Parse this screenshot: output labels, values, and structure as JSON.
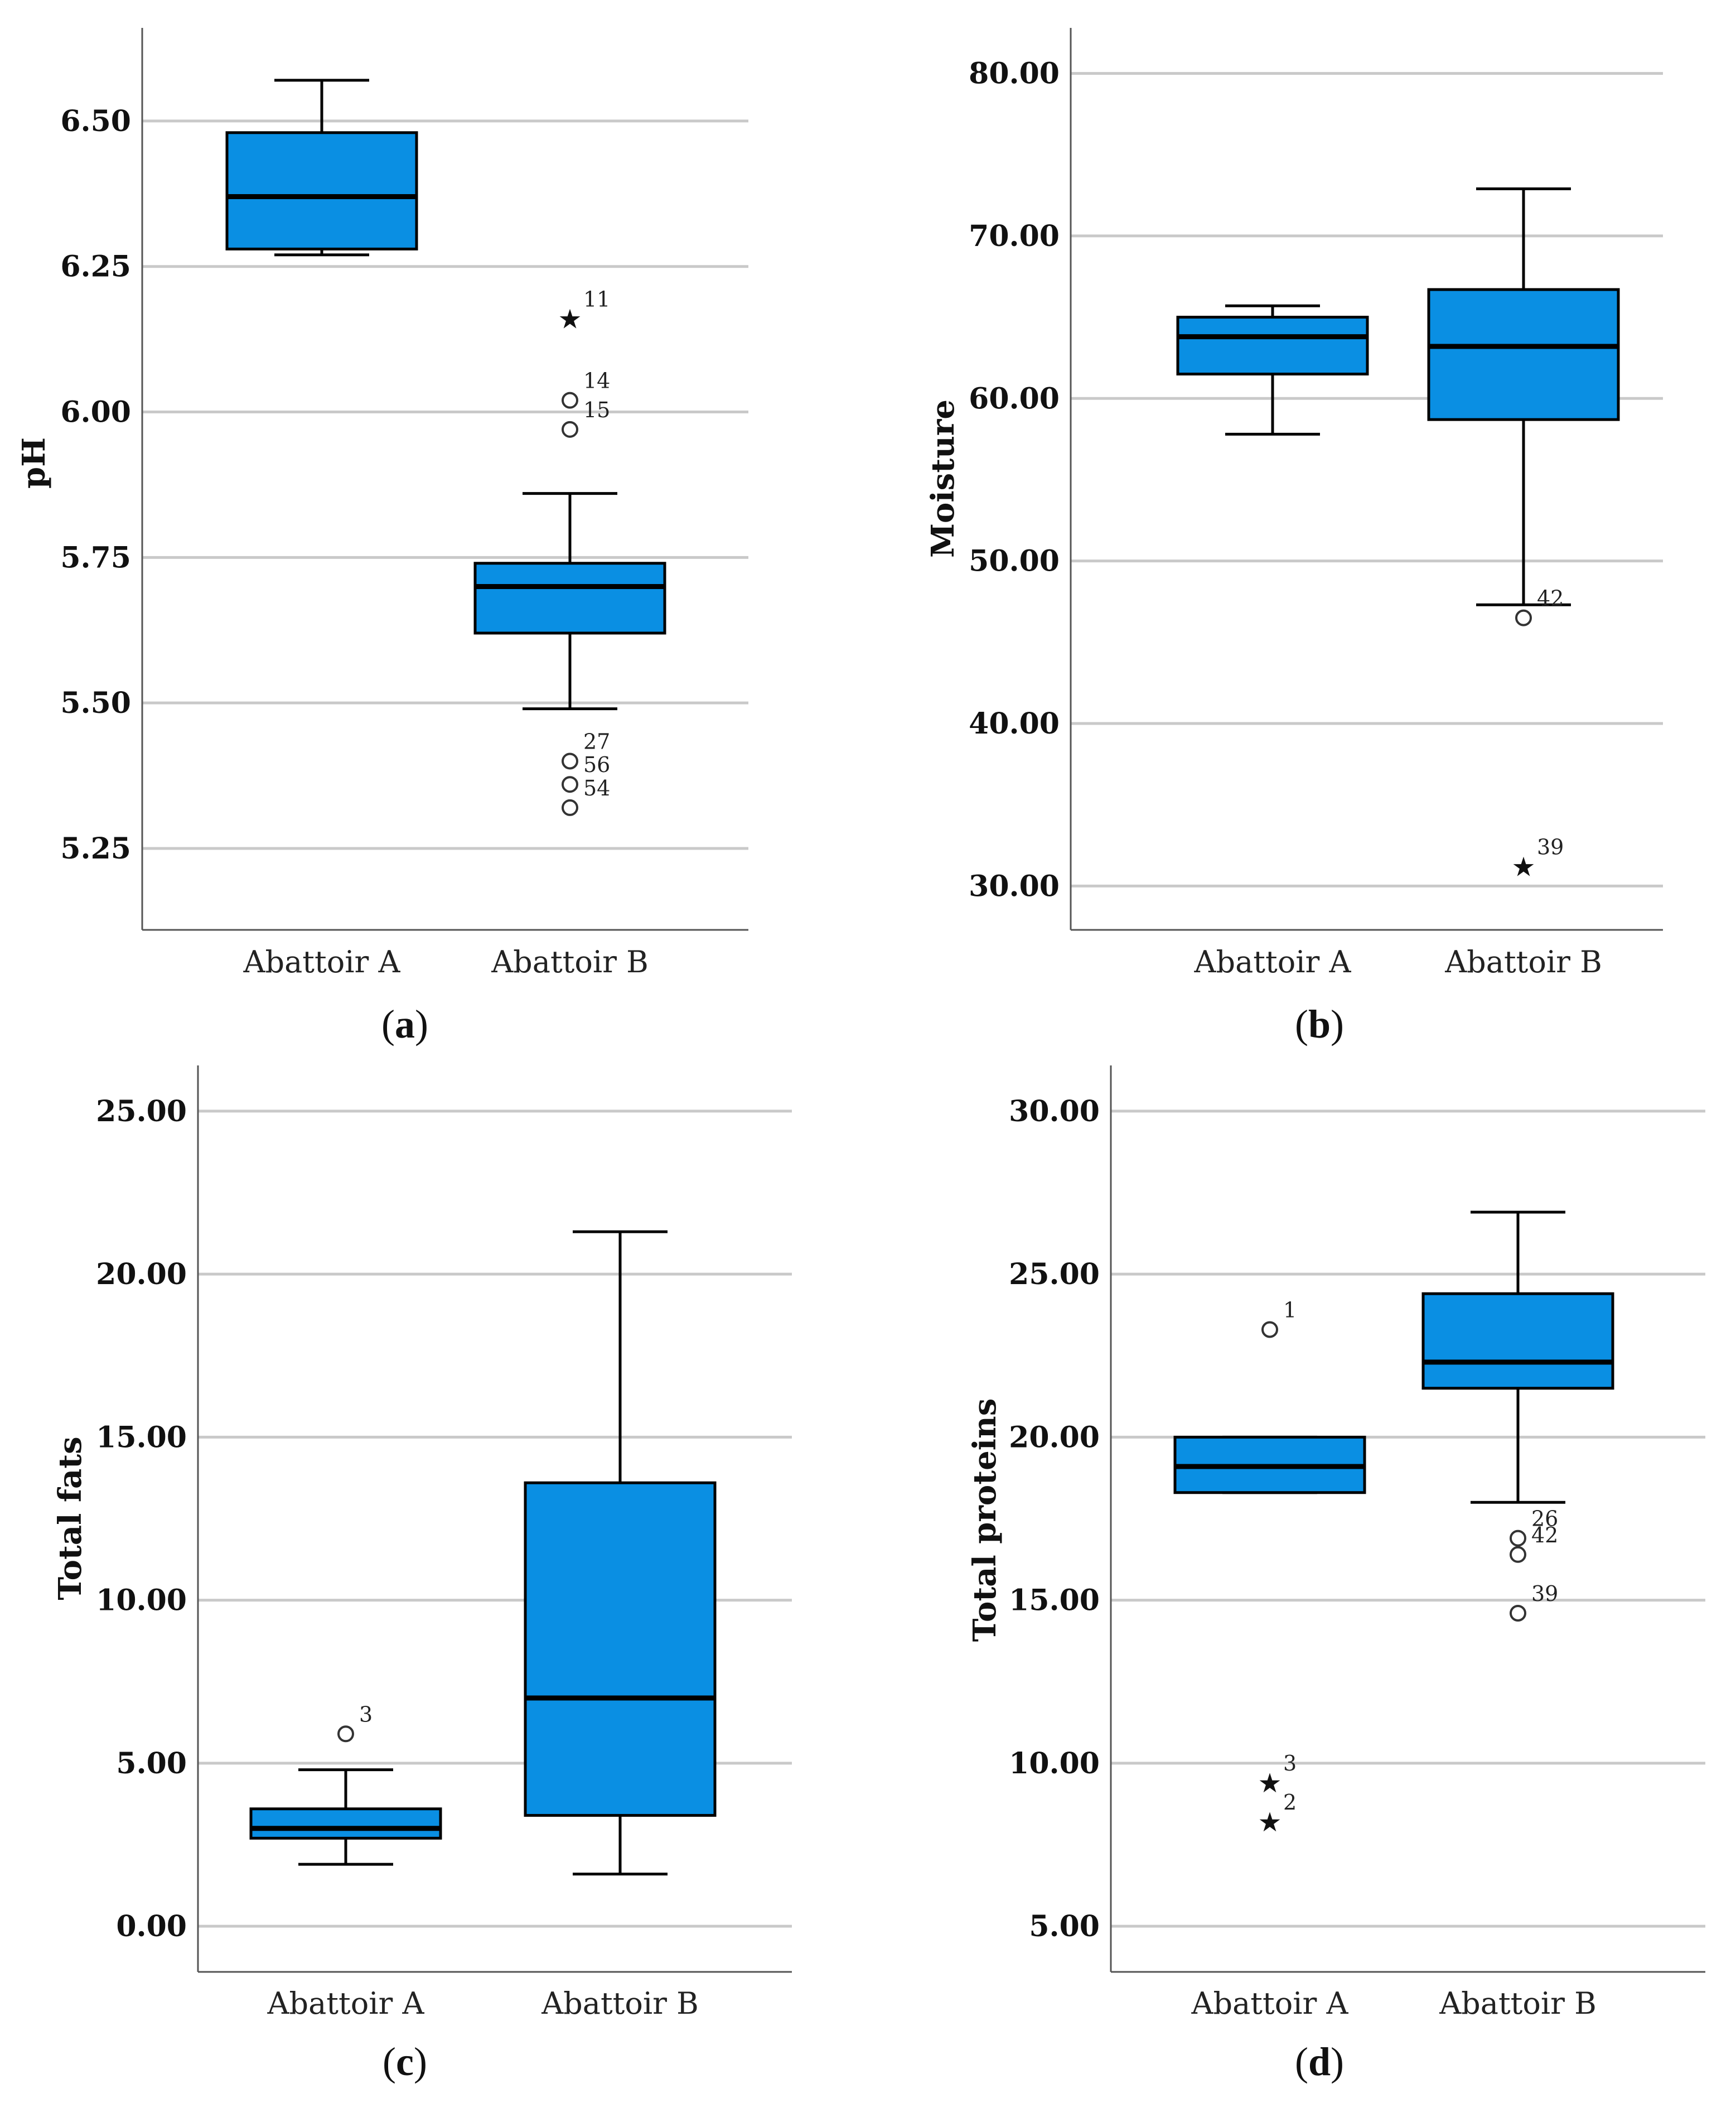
{
  "chart_data": [
    {
      "type": "boxplot",
      "panel_label": "a",
      "ylabel": "pH",
      "yticks": [
        "5.25",
        "5.50",
        "5.75",
        "6.00",
        "6.25",
        "6.50"
      ],
      "ylim": [
        5.11,
        6.66
      ],
      "categories": [
        "Abattoir A",
        "Abattoir B"
      ],
      "boxes": [
        {
          "category": "Abattoir A",
          "min": 6.27,
          "q1": 6.28,
          "median": 6.37,
          "q3": 6.48,
          "max": 6.57,
          "outliers": []
        },
        {
          "category": "Abattoir B",
          "min": 5.49,
          "q1": 5.62,
          "median": 5.7,
          "q3": 5.74,
          "max": 5.86,
          "outliers": [
            {
              "value": 6.16,
              "label": "11",
              "kind": "extreme"
            },
            {
              "value": 6.02,
              "label": "14",
              "kind": "outlier"
            },
            {
              "value": 5.97,
              "label": "15",
              "kind": "outlier"
            },
            {
              "value": 5.4,
              "label": "27",
              "kind": "outlier"
            },
            {
              "value": 5.36,
              "label": "56",
              "kind": "outlier"
            },
            {
              "value": 5.32,
              "label": "54",
              "kind": "outlier"
            }
          ]
        }
      ]
    },
    {
      "type": "boxplot",
      "panel_label": "b",
      "ylabel": "Moisture",
      "yticks": [
        "30.00",
        "40.00",
        "50.00",
        "60.00",
        "70.00",
        "80.00"
      ],
      "ylim": [
        27.3,
        82.8
      ],
      "categories": [
        "Abattoir A",
        "Abattoir B"
      ],
      "boxes": [
        {
          "category": "Abattoir A",
          "min": 57.8,
          "q1": 61.5,
          "median": 63.8,
          "q3": 65.0,
          "max": 65.7,
          "outliers": []
        },
        {
          "category": "Abattoir B",
          "min": 47.3,
          "q1": 58.7,
          "median": 63.2,
          "q3": 66.7,
          "max": 72.9,
          "outliers": [
            {
              "value": 46.5,
              "label": "42",
              "kind": "outlier"
            },
            {
              "value": 31.2,
              "label": "39",
              "kind": "extreme"
            }
          ]
        }
      ]
    },
    {
      "type": "boxplot",
      "panel_label": "c",
      "ylabel": "Total fats",
      "yticks": [
        "0.00",
        "5.00",
        "10.00",
        "15.00",
        "20.00",
        "25.00"
      ],
      "ylim": [
        -1.4,
        26.4
      ],
      "categories": [
        "Abattoir A",
        "Abattoir B"
      ],
      "boxes": [
        {
          "category": "Abattoir A",
          "min": 1.9,
          "q1": 2.7,
          "median": 3.0,
          "q3": 3.6,
          "max": 4.8,
          "outliers": [
            {
              "value": 5.9,
              "label": "3",
              "kind": "outlier"
            }
          ]
        },
        {
          "category": "Abattoir B",
          "min": 1.6,
          "q1": 3.4,
          "median": 7.0,
          "q3": 13.6,
          "max": 21.3,
          "outliers": []
        }
      ]
    },
    {
      "type": "boxplot",
      "panel_label": "d",
      "ylabel": "Total proteins",
      "yticks": [
        "5.00",
        "10.00",
        "15.00",
        "20.00",
        "25.00",
        "30.00"
      ],
      "ylim": [
        3.6,
        31.4
      ],
      "categories": [
        "Abattoir A",
        "Abattoir B"
      ],
      "boxes": [
        {
          "category": "Abattoir A",
          "min": 18.3,
          "q1": 18.3,
          "median": 19.1,
          "q3": 20.0,
          "max": 20.0,
          "outliers": [
            {
              "value": 23.3,
              "label": "1",
              "kind": "outlier"
            },
            {
              "value": 9.4,
              "label": "3",
              "kind": "extreme"
            },
            {
              "value": 8.2,
              "label": "2",
              "kind": "extreme"
            }
          ]
        },
        {
          "category": "Abattoir B",
          "min": 18.0,
          "q1": 21.5,
          "median": 22.3,
          "q3": 24.4,
          "max": 26.9,
          "outliers": [
            {
              "value": 16.9,
              "label": "26",
              "kind": "outlier"
            },
            {
              "value": 16.4,
              "label": "42",
              "kind": "outlier"
            },
            {
              "value": 14.6,
              "label": "39",
              "kind": "outlier"
            }
          ]
        }
      ]
    }
  ]
}
